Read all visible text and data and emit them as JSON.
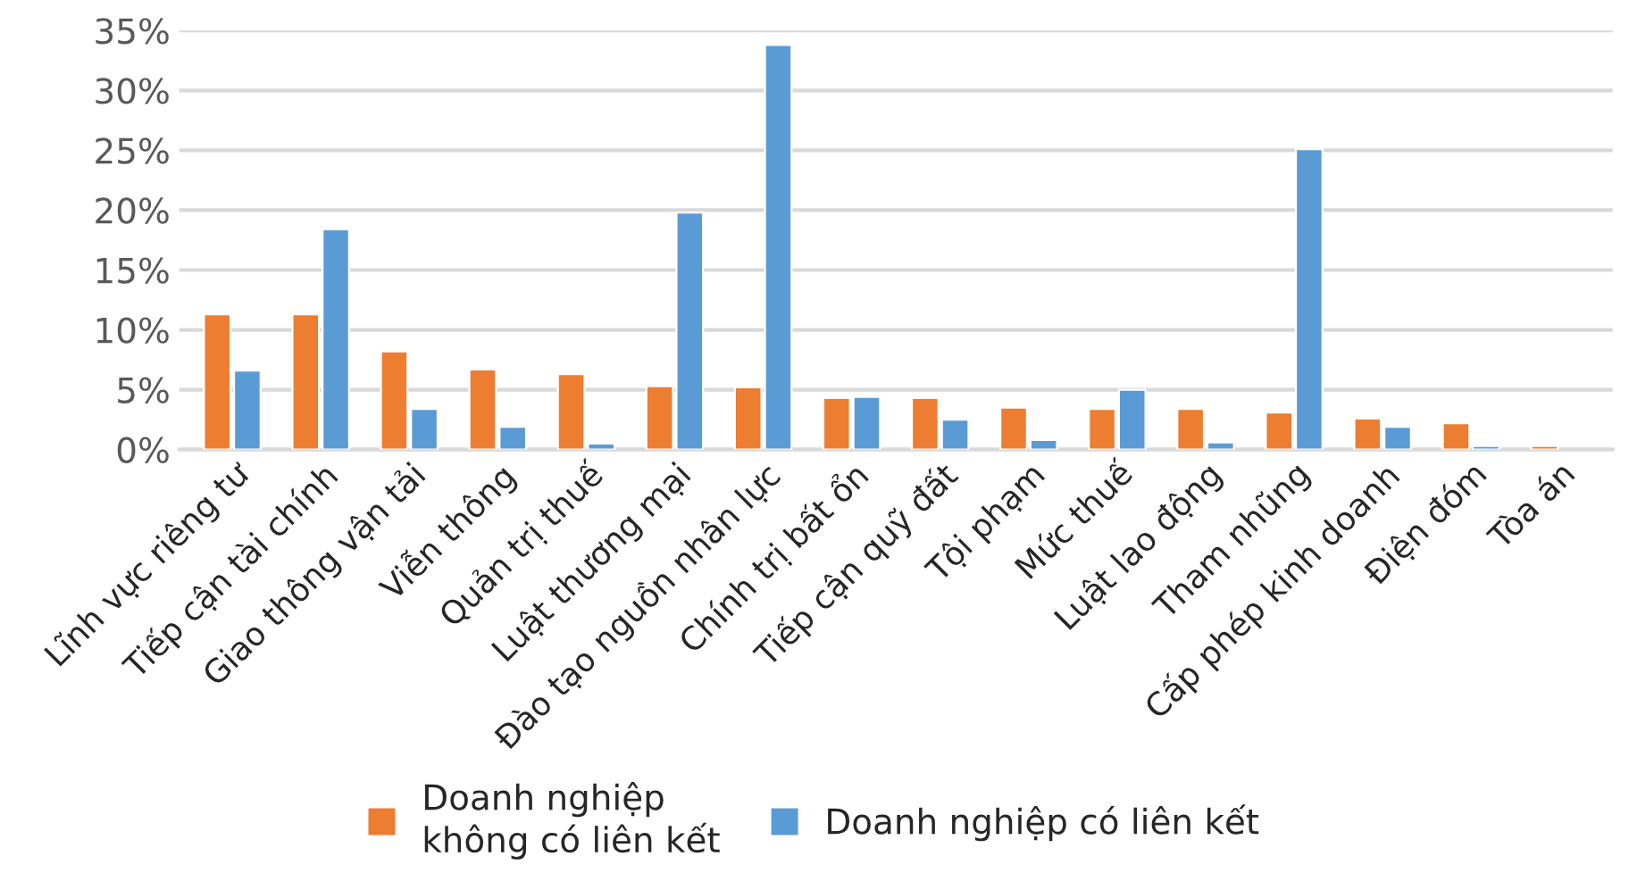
{
  "chart_data": {
    "type": "bar",
    "categories": [
      "Lĩnh vực riêng tư",
      "Tiếp cận tài chính",
      "Giao thông vận tải",
      "Viễn thông",
      "Quản trị thuế",
      "Luật thương mại",
      "Đào tạo nguồn nhân lực",
      "Chính trị bất ổn",
      "Tiếp cận quỹ đất",
      "Tội phạm",
      "Mức thuế",
      "Luật lao động",
      "Tham nhũng",
      "Cấp phép kinh doanh",
      "Điện đóm",
      "Tòa án"
    ],
    "series": [
      {
        "name": "Doanh nghiệp\nkhông có liên kết",
        "color": "#ed7d31",
        "values": [
          11.3,
          11.3,
          8.2,
          6.7,
          6.3,
          5.3,
          5.2,
          4.3,
          4.3,
          3.5,
          3.4,
          3.4,
          3.1,
          2.6,
          2.2,
          0.3
        ]
      },
      {
        "name": "Doanh nghiệp có liên kết",
        "color": "#5b9bd5",
        "values": [
          6.6,
          18.4,
          3.4,
          1.9,
          0.5,
          19.8,
          33.8,
          4.4,
          2.5,
          0.8,
          5.0,
          0.6,
          25.1,
          1.9,
          0.3,
          null
        ]
      }
    ],
    "ylim": [
      0,
      35
    ],
    "yticks": [
      {
        "value": 0,
        "label": "0%"
      },
      {
        "value": 5,
        "label": "5%"
      },
      {
        "value": 10,
        "label": "10%"
      },
      {
        "value": 15,
        "label": "15%"
      },
      {
        "value": 20,
        "label": "20%"
      },
      {
        "value": 25,
        "label": "25%"
      },
      {
        "value": 30,
        "label": "30%"
      },
      {
        "value": 35,
        "label": "35%"
      }
    ],
    "grid": "y",
    "legend": "bottom"
  }
}
